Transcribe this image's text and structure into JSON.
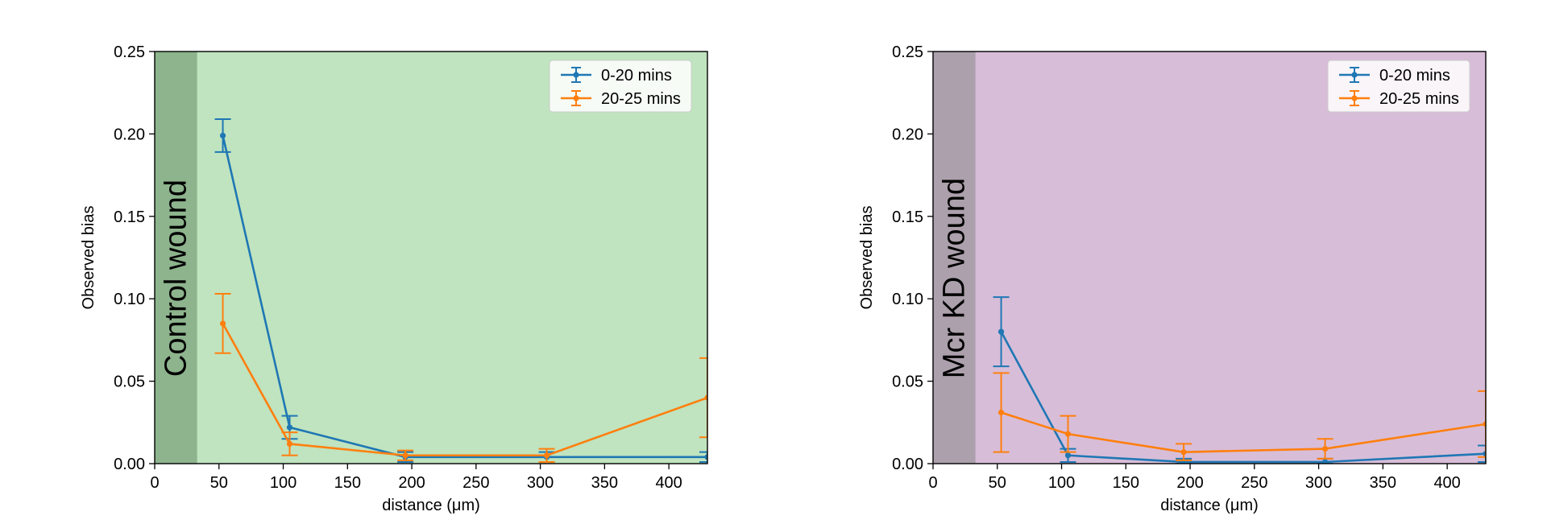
{
  "chart_data": [
    {
      "type": "line",
      "panel_label": "Control wound",
      "xlabel": "distance (μm)",
      "ylabel": "Observed bias",
      "xlim": [
        0,
        430
      ],
      "ylim": [
        0,
        0.25
      ],
      "x_ticks": [
        "0",
        "50",
        "100",
        "150",
        "200",
        "250",
        "300",
        "350",
        "400"
      ],
      "y_ticks": [
        "0.00",
        "0.05",
        "0.10",
        "0.15",
        "0.20",
        "0.25"
      ],
      "background_color": "#bfe4bf",
      "shaded_region": {
        "x_start": 0,
        "x_end": 33,
        "color": "#8db48d"
      },
      "grid": false,
      "legend_position": "top-right",
      "series": [
        {
          "name": "0-20 mins",
          "color": "#1f77b4",
          "x": [
            53,
            105,
            195,
            305,
            430
          ],
          "y": [
            0.199,
            0.022,
            0.004,
            0.004,
            0.004
          ],
          "err": [
            0.01,
            0.007,
            0.003,
            0.003,
            0.003
          ]
        },
        {
          "name": "20-25 mins",
          "color": "#ff7f0e",
          "x": [
            53,
            105,
            195,
            305,
            430
          ],
          "y": [
            0.085,
            0.012,
            0.005,
            0.005,
            0.04
          ],
          "err": [
            0.018,
            0.007,
            0.003,
            0.004,
            0.024
          ]
        }
      ]
    },
    {
      "type": "line",
      "panel_label": "Mcr KD wound",
      "xlabel": "distance (μm)",
      "ylabel": "Observed bias",
      "xlim": [
        0,
        430
      ],
      "ylim": [
        0,
        0.25
      ],
      "x_ticks": [
        "0",
        "50",
        "100",
        "150",
        "200",
        "250",
        "300",
        "350",
        "400"
      ],
      "y_ticks": [
        "0.00",
        "0.05",
        "0.10",
        "0.15",
        "0.20",
        "0.25"
      ],
      "background_color": "#d8bdd8",
      "shaded_region": {
        "x_start": 0,
        "x_end": 33,
        "color": "#aca0ac"
      },
      "grid": false,
      "legend_position": "top-right",
      "series": [
        {
          "name": "0-20 mins",
          "color": "#1f77b4",
          "x": [
            53,
            105,
            195,
            305,
            430
          ],
          "y": [
            0.08,
            0.005,
            0.001,
            0.001,
            0.006
          ],
          "err": [
            0.021,
            0.004,
            0.002,
            0.002,
            0.005
          ]
        },
        {
          "name": "20-25 mins",
          "color": "#ff7f0e",
          "x": [
            53,
            105,
            195,
            305,
            430
          ],
          "y": [
            0.031,
            0.018,
            0.007,
            0.009,
            0.024
          ],
          "err": [
            0.024,
            0.011,
            0.005,
            0.006,
            0.02
          ]
        }
      ]
    }
  ]
}
